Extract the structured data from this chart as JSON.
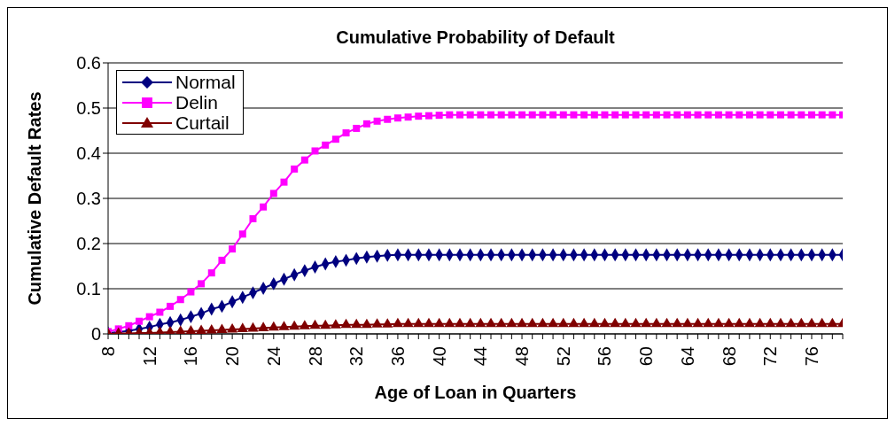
{
  "chart_data": {
    "type": "line",
    "title": "Cumulative Probability of Default",
    "xlabel": "Age of Loan in Quarters",
    "ylabel": "Cumulative Default Rates",
    "categories": [
      "8",
      null,
      null,
      null,
      "12",
      null,
      null,
      null,
      "16",
      null,
      null,
      null,
      "20",
      null,
      null,
      null,
      "24",
      null,
      null,
      null,
      "28",
      null,
      null,
      null,
      "32",
      null,
      null,
      null,
      "36",
      null,
      null,
      null,
      "40",
      null,
      null,
      null,
      "44",
      null,
      null,
      null,
      "48",
      null,
      null,
      null,
      "52",
      null,
      null,
      null,
      "56",
      null,
      null,
      null,
      "60",
      null,
      null,
      null,
      "64",
      null,
      null,
      null,
      "68",
      null,
      null,
      null,
      "72",
      null,
      null,
      null,
      "76",
      null,
      null,
      null
    ],
    "series": [
      {
        "name": "Normal",
        "color": "#000080",
        "marker": "diamond",
        "values": [
          0.002,
          0.004,
          0.007,
          0.011,
          0.015,
          0.021,
          0.025,
          0.031,
          0.038,
          0.045,
          0.055,
          0.061,
          0.071,
          0.081,
          0.091,
          0.101,
          0.111,
          0.121,
          0.131,
          0.14,
          0.148,
          0.155,
          0.16,
          0.163,
          0.167,
          0.17,
          0.172,
          0.174,
          0.175,
          0.175,
          0.175,
          0.175,
          0.175,
          0.175,
          0.175,
          0.175,
          0.175,
          0.175,
          0.175,
          0.175,
          0.175,
          0.175,
          0.175,
          0.175,
          0.175,
          0.175,
          0.175,
          0.175,
          0.175,
          0.175,
          0.175,
          0.175,
          0.175,
          0.175,
          0.175,
          0.175,
          0.175,
          0.175,
          0.175,
          0.175,
          0.175,
          0.175,
          0.175,
          0.175,
          0.175,
          0.175,
          0.175,
          0.175,
          0.175,
          0.175,
          0.175,
          0.175
        ]
      },
      {
        "name": "Delin",
        "color": "#ff00ff",
        "marker": "square",
        "values": [
          0.005,
          0.011,
          0.018,
          0.028,
          0.038,
          0.048,
          0.061,
          0.076,
          0.093,
          0.111,
          0.135,
          0.163,
          0.188,
          0.221,
          0.255,
          0.281,
          0.311,
          0.336,
          0.365,
          0.385,
          0.405,
          0.418,
          0.431,
          0.445,
          0.455,
          0.465,
          0.471,
          0.475,
          0.478,
          0.48,
          0.482,
          0.483,
          0.484,
          0.485,
          0.485,
          0.485,
          0.485,
          0.485,
          0.485,
          0.485,
          0.485,
          0.485,
          0.485,
          0.485,
          0.485,
          0.485,
          0.485,
          0.485,
          0.485,
          0.485,
          0.485,
          0.485,
          0.485,
          0.485,
          0.485,
          0.485,
          0.485,
          0.485,
          0.485,
          0.485,
          0.485,
          0.485,
          0.485,
          0.485,
          0.485,
          0.485,
          0.485,
          0.485,
          0.485,
          0.485,
          0.485,
          0.485
        ]
      },
      {
        "name": "Curtail",
        "color": "#800000",
        "marker": "triangle",
        "values": [
          0,
          0.001,
          0.001,
          0.002,
          0.002,
          0.003,
          0.004,
          0.005,
          0.006,
          0.007,
          0.008,
          0.009,
          0.01,
          0.011,
          0.012,
          0.013,
          0.014,
          0.015,
          0.016,
          0.017,
          0.018,
          0.018,
          0.019,
          0.02,
          0.02,
          0.02,
          0.021,
          0.021,
          0.022,
          0.022,
          0.022,
          0.022,
          0.022,
          0.022,
          0.022,
          0.022,
          0.022,
          0.022,
          0.022,
          0.022,
          0.022,
          0.022,
          0.022,
          0.022,
          0.022,
          0.022,
          0.022,
          0.022,
          0.022,
          0.022,
          0.022,
          0.022,
          0.022,
          0.022,
          0.022,
          0.022,
          0.022,
          0.022,
          0.022,
          0.022,
          0.022,
          0.022,
          0.022,
          0.022,
          0.022,
          0.022,
          0.022,
          0.022,
          0.022,
          0.022,
          0.022,
          0.022
        ]
      }
    ],
    "ylim": [
      0,
      0.6
    ],
    "yticks": [
      0,
      0.1,
      0.2,
      0.3,
      0.4,
      0.5,
      0.6
    ],
    "grid": "y",
    "legend": "top left",
    "line_style": "solid"
  }
}
